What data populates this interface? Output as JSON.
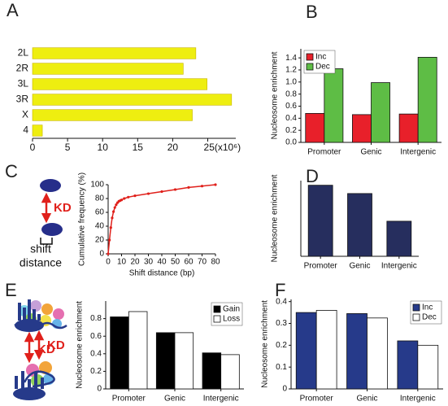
{
  "panels": [
    "A",
    "B",
    "C",
    "D",
    "E",
    "F"
  ],
  "diagrams": {
    "C": {
      "arrow_label": "KD",
      "caption": [
        "shift",
        "distance"
      ]
    },
    "E": {
      "arrow_label": "KD"
    },
    "F": {
      "arrow_label": "KD"
    }
  },
  "chart_data": [
    {
      "type": "hbar",
      "categories": [
        "2L",
        "2R",
        "3L",
        "3R",
        "X",
        "4"
      ],
      "values": [
        23.3,
        21.5,
        24.9,
        28.4,
        22.8,
        1.4
      ],
      "color": "#eeee10",
      "xlim": [
        0,
        29
      ],
      "xticks": [
        0,
        5,
        10,
        15,
        20,
        {
          "value": 25,
          "label": "25(x10⁶)"
        }
      ]
    },
    {
      "type": "bar",
      "ylabel": "Nucleosome enrichment",
      "categories": [
        "Promoter",
        "Genic",
        "Intergenic"
      ],
      "series": [
        {
          "name": "Inc",
          "color": "#e8202a",
          "values": [
            0.48,
            0.46,
            0.47
          ]
        },
        {
          "name": "Dec",
          "color": "#5ebd45",
          "values": [
            1.22,
            0.99,
            1.41
          ]
        }
      ],
      "ylim": [
        0,
        1.55
      ],
      "yticks": [
        {
          "value": 0,
          "label": "0.0"
        },
        0.2,
        0.4,
        0.6,
        0.8,
        {
          "value": 1,
          "label": "1.0"
        },
        1.2,
        1.4
      ],
      "legend": "upper left"
    },
    {
      "type": "line",
      "xlabel": "Shift distance (bp)",
      "ylabel": "Cumulative frequency (%)",
      "color": "#e0201b",
      "x": [
        0,
        1,
        2,
        3,
        4,
        5,
        6,
        7,
        8,
        9,
        10,
        12,
        15,
        20,
        30,
        40,
        50,
        60,
        70,
        80
      ],
      "values": [
        0,
        20,
        38,
        52,
        61,
        67,
        71,
        74,
        76,
        77,
        78,
        80,
        82,
        84,
        87,
        90,
        93,
        96,
        98,
        100
      ],
      "xlim": [
        0,
        80
      ],
      "xticks": [
        0,
        10,
        20,
        30,
        40,
        50,
        60,
        70,
        80
      ],
      "ylim": [
        0,
        100
      ],
      "yticks": [
        0,
        20,
        40,
        60,
        80,
        100
      ]
    },
    {
      "type": "bar",
      "ylabel": "Nucleosome enrichment",
      "categories": [
        "Promoter",
        "Genic",
        "Intergenic"
      ],
      "values": [
        0.77,
        0.68,
        0.38
      ],
      "color": "#262e5e",
      "ylim": [
        0,
        0.82
      ]
    },
    {
      "type": "bar",
      "ylabel": "Nucleosome enrichment",
      "categories": [
        "Promoter",
        "Genic",
        "Intergenic"
      ],
      "series": [
        {
          "name": "Gain",
          "color": "#000000",
          "values": [
            0.82,
            0.64,
            0.41
          ]
        },
        {
          "name": "Loss",
          "color": "#ffffff",
          "values": [
            0.88,
            0.64,
            0.39
          ]
        }
      ],
      "ylim": [
        0,
        1
      ],
      "yticks": [
        0,
        0.2,
        0.4,
        0.6,
        0.8
      ],
      "legend": "upper right"
    },
    {
      "type": "bar",
      "ylabel": "Nucleosome enrichment",
      "categories": [
        "Promoter",
        "Genic",
        "Intergenic"
      ],
      "series": [
        {
          "name": "Inc",
          "color": "#263a8a",
          "values": [
            0.35,
            0.345,
            0.22
          ]
        },
        {
          "name": "Dec",
          "color": "#ffffff",
          "values": [
            0.36,
            0.325,
            0.2
          ]
        }
      ],
      "ylim": [
        0,
        0.41
      ],
      "yticks": [
        0,
        0.1,
        0.2,
        0.3,
        0.4
      ],
      "legend": "upper right"
    }
  ]
}
